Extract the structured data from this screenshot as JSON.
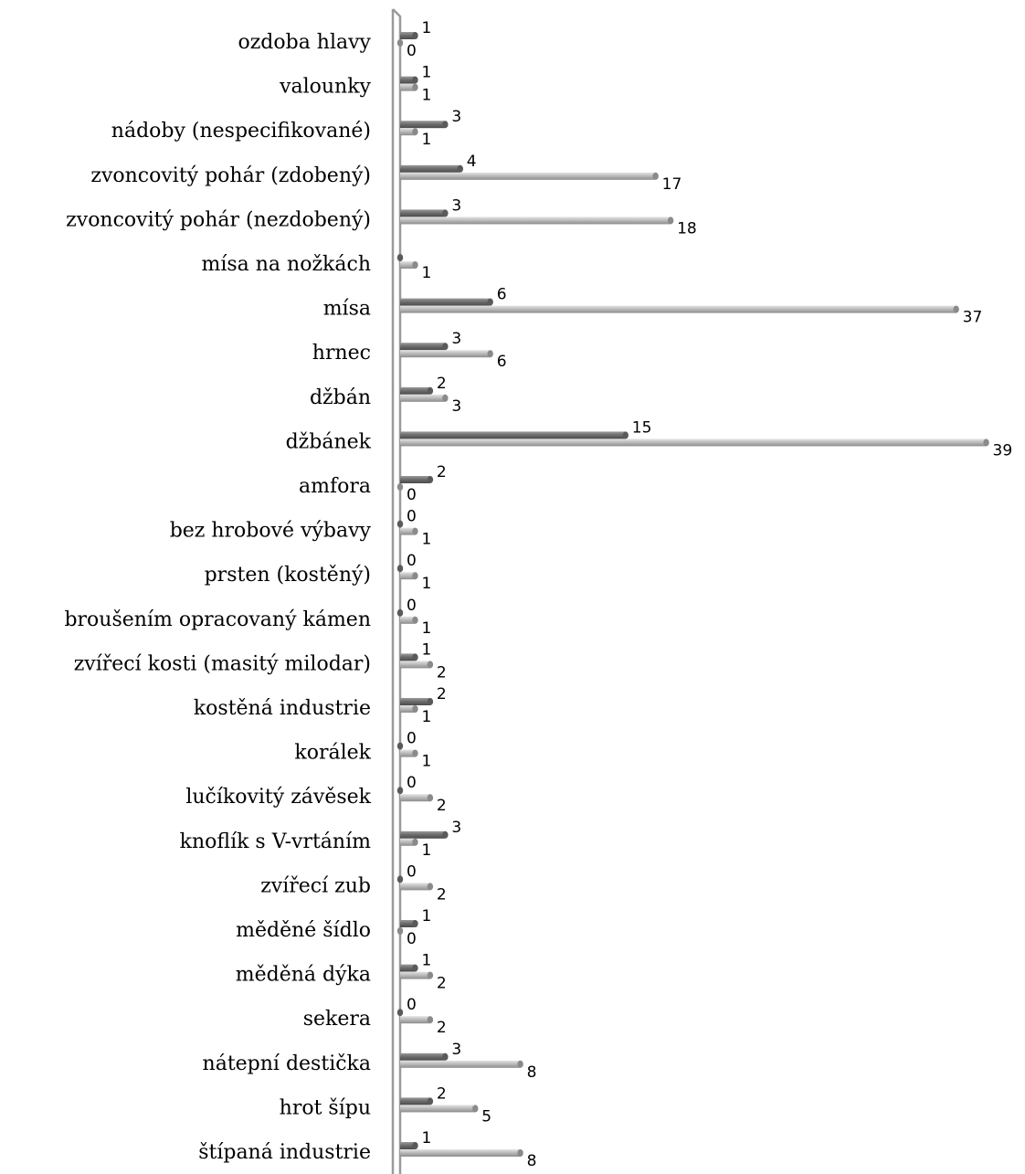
{
  "chart_data": {
    "type": "bar",
    "orientation": "horizontal",
    "style": "3d-cylinder",
    "grid": false,
    "legend": "none",
    "xlim": [
      0,
      39
    ],
    "colors": {
      "series_dark": "#7a7a7a",
      "series_light": "#b9b9b9",
      "axis": "#9a9a9a"
    },
    "categories": [
      "ozdoba hlavy",
      "valounky",
      "nádoby (nespecifikované)",
      "zvoncovitý pohár (zdobený)",
      "zvoncovitý pohár (nezdobený)",
      "mísa na nožkách",
      "mísa",
      "hrnec",
      "džbán",
      "džbánek",
      "amfora",
      "bez hrobové výbavy",
      "prsten (kostěný)",
      "broušením opracovaný kámen",
      "zvířecí kosti (masitý milodar)",
      "kostěná industrie",
      "korálek",
      "lučíkovitý závěsek",
      "knoflík s V-vrtáním",
      "zvířecí zub",
      "měděné šídlo",
      "měděná dýka",
      "sekera",
      "nátepní destička",
      "hrot šípu",
      "štípaná industrie"
    ],
    "series": [
      {
        "color": "#7a7a7a",
        "values": [
          1,
          1,
          3,
          4,
          3,
          0,
          6,
          3,
          2,
          15,
          2,
          0,
          0,
          0,
          1,
          2,
          0,
          0,
          3,
          0,
          1,
          1,
          0,
          3,
          2,
          1
        ]
      },
      {
        "color": "#b9b9b9",
        "values": [
          0,
          1,
          1,
          17,
          18,
          1,
          37,
          6,
          3,
          39,
          0,
          1,
          1,
          1,
          2,
          1,
          1,
          2,
          1,
          2,
          0,
          2,
          2,
          8,
          5,
          8
        ]
      }
    ],
    "value_labels": [
      [
        "1",
        "1",
        "3",
        "4",
        "3",
        "",
        "6",
        "3",
        "2",
        "15",
        "2",
        "0",
        "0",
        "0",
        "1",
        "2",
        "0",
        "0",
        "3",
        "0",
        "1",
        "1",
        "0",
        "3",
        "2",
        "1"
      ],
      [
        "0",
        "1",
        "1",
        "17",
        "18",
        "1",
        "37",
        "6",
        "3",
        "39",
        "0",
        "1",
        "1",
        "1",
        "2",
        "1",
        "1",
        "2",
        "1",
        "2",
        "0",
        "2",
        "2",
        "8",
        "5",
        "8"
      ]
    ]
  }
}
